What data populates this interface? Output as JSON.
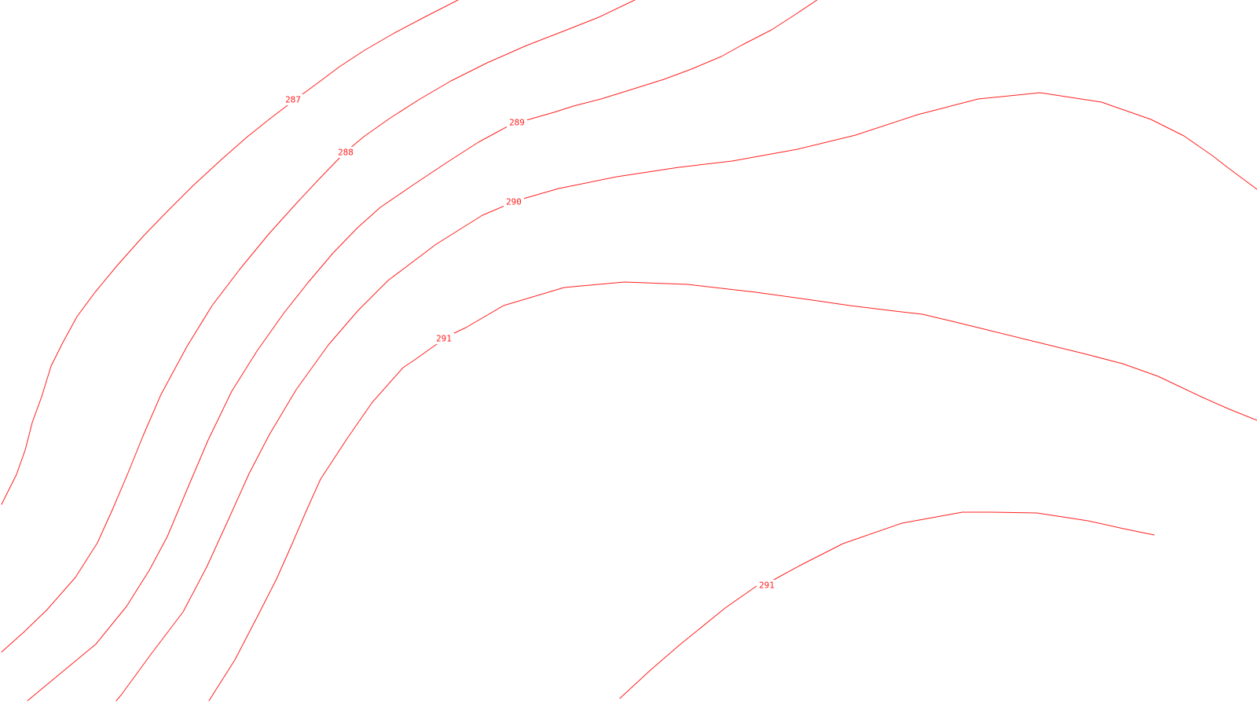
{
  "map": {
    "background_color": "#ffffff",
    "line_color": "#ff2020",
    "contours": [
      {
        "elevation": "287"
      },
      {
        "elevation": "288"
      },
      {
        "elevation": "289"
      },
      {
        "elevation": "290"
      },
      {
        "elevation": "291"
      },
      {
        "elevation": "291"
      }
    ]
  }
}
